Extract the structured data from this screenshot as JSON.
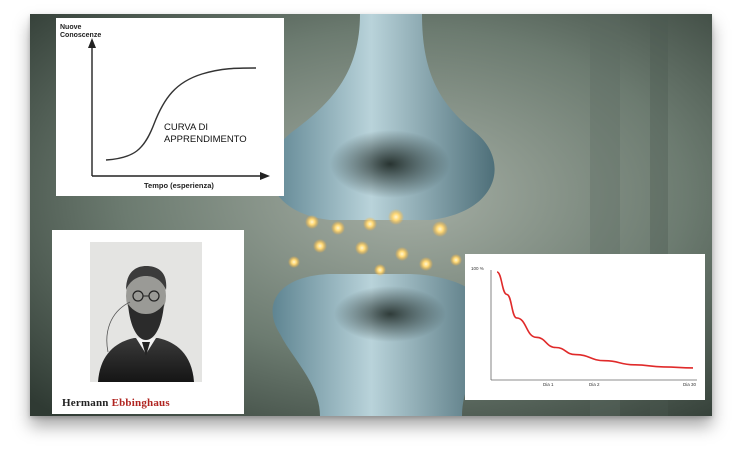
{
  "learning_curve": {
    "ylabel_line1": "Nuove",
    "ylabel_line2": "Conoscenze",
    "curve_label_line1": "CURVA DI",
    "curve_label_line2": "APPRENDIMENTO",
    "xlabel": "Tempo (esperienza)",
    "axis_color": "#222222",
    "curve_color": "#333333"
  },
  "portrait": {
    "caption_first": "Hermann",
    "caption_last": "Ebbinghaus",
    "caption_accent_color": "#b0231f"
  },
  "forgetting_curve": {
    "chart_data": {
      "type": "line",
      "y_tick_top": "100 %",
      "x_ticks": [
        "Dia 1",
        "Dia 2",
        "Dia 30"
      ],
      "series": [
        {
          "values_x": [
            0,
            0.05,
            0.1,
            0.2,
            0.3,
            0.4,
            0.55,
            0.7,
            0.85,
            1.0
          ],
          "values_y": [
            1.0,
            0.78,
            0.55,
            0.36,
            0.26,
            0.19,
            0.13,
            0.09,
            0.07,
            0.06
          ]
        }
      ],
      "line_color": "#e02a2a",
      "grid": false
    }
  },
  "background": {
    "synapse_color": "#a9c6cf",
    "bg_dark": "#3d4a42",
    "glow_color": "#ffe6a0"
  }
}
